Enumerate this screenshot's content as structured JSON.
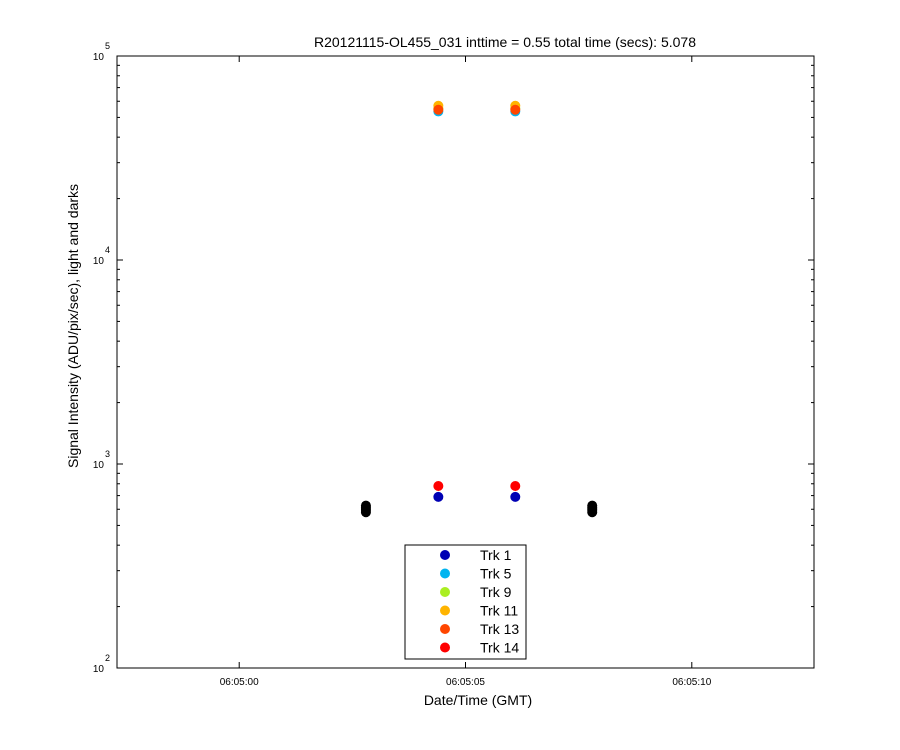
{
  "chart_data": {
    "type": "scatter",
    "title": "R20121115-OL455_031 inttime = 0.55 total time (secs): 5.078",
    "xlabel": "Date/Time (GMT)",
    "ylabel": "Signal Intensity (ADU/pix/sec), light and darks",
    "x_time_base": "06:05:00",
    "xlim": [
      "06:04:57.3",
      "06:05:12.7"
    ],
    "ylim": [
      100,
      100000
    ],
    "yscale": "log",
    "x_ticks": [
      "06:05:00",
      "06:05:05",
      "06:05:10"
    ],
    "y_ticks": [
      {
        "value": 100,
        "base": "10",
        "exp": "2"
      },
      {
        "value": 1000,
        "base": "10",
        "exp": "3"
      },
      {
        "value": 10000,
        "base": "10",
        "exp": "4"
      },
      {
        "value": 100000,
        "base": "10",
        "exp": "5"
      }
    ],
    "grid": false,
    "legend_position": "bottom-center",
    "series": [
      {
        "name": "Trk 1",
        "color": "#0000b4",
        "x": [
          "06:05:04.4",
          "06:05:06.1"
        ],
        "y": [
          690,
          690
        ]
      },
      {
        "name": "Trk 5",
        "color": "#00b4f0",
        "x": [
          "06:05:04.4",
          "06:05:06.1"
        ],
        "y": [
          53500,
          53500
        ]
      },
      {
        "name": "Trk 9",
        "color": "#aaee22",
        "x": [
          "06:05:04.4",
          "06:05:06.1"
        ],
        "y": [
          55500,
          55500
        ]
      },
      {
        "name": "Trk 11",
        "color": "#ffb400",
        "x": [
          "06:05:04.4",
          "06:05:06.1"
        ],
        "y": [
          57000,
          57000
        ]
      },
      {
        "name": "Trk 13",
        "color": "#ff4600",
        "x": [
          "06:05:04.4",
          "06:05:06.1"
        ],
        "y": [
          54500,
          54500
        ]
      },
      {
        "name": "Trk 14",
        "color": "#ff0000",
        "x": [
          "06:05:04.4",
          "06:05:06.1"
        ],
        "y": [
          780,
          780
        ]
      }
    ],
    "dark_points": {
      "color": "#000000",
      "x": [
        "06:05:02.8",
        "06:05:02.8",
        "06:05:02.8",
        "06:05:02.8",
        "06:05:07.8",
        "06:05:07.8",
        "06:05:07.8",
        "06:05:07.8"
      ],
      "y": [
        580,
        595,
        610,
        625,
        580,
        595,
        610,
        625
      ]
    }
  }
}
